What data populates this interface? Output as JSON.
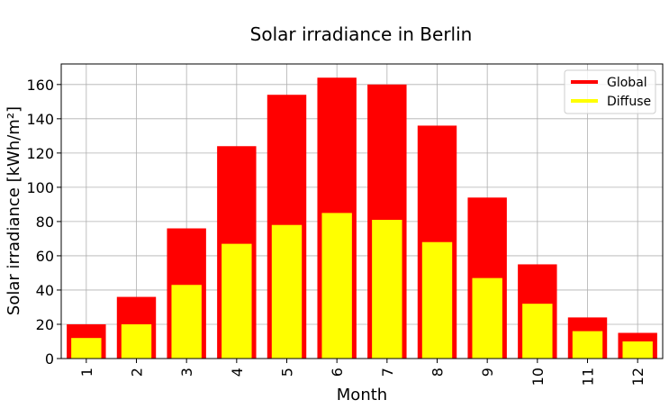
{
  "chart_data": {
    "type": "bar",
    "title": "Solar irradiance in Berlin",
    "xlabel": "Month",
    "ylabel": "Solar irradiance [kWh/m²]",
    "categories": [
      "1",
      "2",
      "3",
      "4",
      "5",
      "6",
      "7",
      "8",
      "9",
      "10",
      "11",
      "12"
    ],
    "series": [
      {
        "name": "Global",
        "color": "#ff0000",
        "values": [
          20,
          36,
          76,
          124,
          154,
          164,
          160,
          136,
          94,
          55,
          24,
          15
        ]
      },
      {
        "name": "Diffuse",
        "color": "#ffff00",
        "values": [
          12,
          20,
          43,
          67,
          78,
          85,
          81,
          68,
          47,
          32,
          16,
          10
        ]
      }
    ],
    "ylim": [
      0,
      172
    ],
    "yticks": [
      0,
      20,
      40,
      60,
      80,
      100,
      120,
      140,
      160
    ],
    "grid": true,
    "legend": "top-right",
    "bar_style": "overlaid"
  }
}
